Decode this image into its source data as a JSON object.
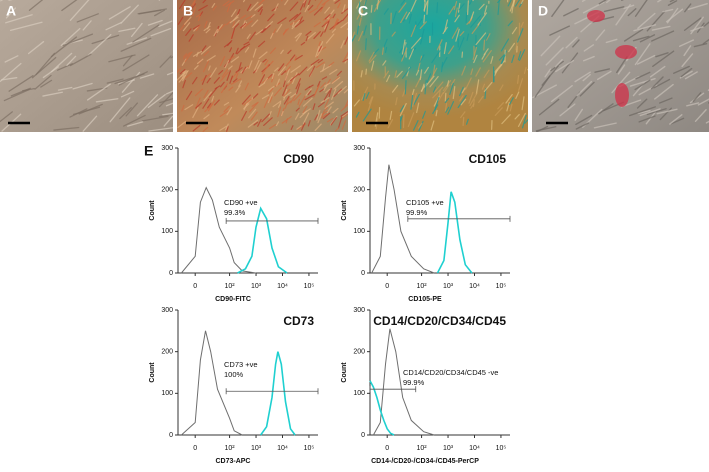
{
  "panels": [
    "A",
    "B",
    "C",
    "D"
  ],
  "figure_label": "E",
  "chart_data": [
    {
      "type": "line",
      "title": "CD90",
      "xlabel": "CD90-FITC",
      "ylabel": "Count",
      "xlim": [
        -50,
        220000
      ],
      "ylim": [
        0,
        300
      ],
      "yticks": [
        0,
        100,
        200,
        300
      ],
      "xticks": [
        0,
        {
          "value": 100,
          "label": "10²"
        },
        {
          "value": 1000,
          "label": "10³"
        },
        {
          "value": 10000,
          "label": "10⁴"
        },
        {
          "value": 100000,
          "label": "10⁵"
        }
      ],
      "gate": {
        "x": [
          90,
          220000
        ],
        "y": 125,
        "labels": [
          "CD90 +ve",
          "99.3%"
        ]
      },
      "series": [
        {
          "color": "#6e6e6e",
          "x": [
            -40,
            0,
            15,
            32,
            50,
            70,
            100,
            150,
            300,
            1000
          ],
          "values": [
            0,
            40,
            170,
            205,
            175,
            110,
            60,
            25,
            5,
            0
          ]
        },
        {
          "color": "#1fd0d0",
          "x": [
            200,
            400,
            700,
            1000,
            1500,
            2500,
            4000,
            7000,
            15000
          ],
          "values": [
            0,
            10,
            40,
            110,
            155,
            130,
            60,
            15,
            0
          ]
        }
      ]
    },
    {
      "type": "line",
      "title": "CD105",
      "xlabel": "CD105-PE",
      "ylabel": "Count",
      "xlim": [
        -50,
        220000
      ],
      "ylim": [
        0,
        300
      ],
      "yticks": [
        0,
        100,
        200,
        300
      ],
      "xticks": [
        0,
        {
          "value": 100,
          "label": "10²"
        },
        {
          "value": 1000,
          "label": "10³"
        },
        {
          "value": 10000,
          "label": "10⁴"
        },
        {
          "value": 100000,
          "label": "10⁵"
        }
      ],
      "gate": {
        "x": [
          60,
          220000
        ],
        "y": 130,
        "labels": [
          "CD105 +ve",
          "99.9%"
        ]
      },
      "series": [
        {
          "color": "#6e6e6e",
          "x": [
            -45,
            -20,
            -5,
            5,
            20,
            40,
            70,
            120,
            300
          ],
          "values": [
            0,
            40,
            180,
            260,
            200,
            100,
            40,
            10,
            0
          ]
        },
        {
          "color": "#1fd0d0",
          "x": [
            400,
            700,
            1000,
            1300,
            1800,
            2800,
            4500,
            8000
          ],
          "values": [
            0,
            30,
            120,
            195,
            170,
            80,
            20,
            0
          ]
        }
      ]
    },
    {
      "type": "line",
      "title": "CD73",
      "xlabel": "CD73-APC",
      "ylabel": "Count",
      "xlim": [
        -50,
        220000
      ],
      "ylim": [
        0,
        300
      ],
      "yticks": [
        0,
        100,
        200,
        300
      ],
      "xticks": [
        0,
        {
          "value": 100,
          "label": "10²"
        },
        {
          "value": 1000,
          "label": "10³"
        },
        {
          "value": 10000,
          "label": "10⁴"
        },
        {
          "value": 100000,
          "label": "10⁵"
        }
      ],
      "gate": {
        "x": [
          90,
          220000
        ],
        "y": 105,
        "labels": [
          "CD73 +ve",
          "100%"
        ]
      },
      "series": [
        {
          "color": "#6e6e6e",
          "x": [
            -40,
            0,
            15,
            30,
            45,
            65,
            100,
            150,
            300
          ],
          "values": [
            0,
            30,
            180,
            250,
            200,
            110,
            40,
            10,
            0
          ]
        },
        {
          "color": "#1fd0d0",
          "x": [
            1500,
            2500,
            4000,
            5500,
            6700,
            9000,
            13000,
            20000,
            30000
          ],
          "values": [
            0,
            20,
            90,
            170,
            200,
            170,
            80,
            15,
            0
          ]
        }
      ]
    },
    {
      "type": "line",
      "title": "CD14/CD20/CD34/CD45",
      "xlabel": "CD14-/CD20-/CD34-/CD45-PerCP",
      "ylabel": "Count",
      "xlim": [
        -50,
        220000
      ],
      "ylim": [
        0,
        300
      ],
      "yticks": [
        0,
        100,
        200,
        300
      ],
      "xticks": [
        0,
        {
          "value": 100,
          "label": "10²"
        },
        {
          "value": 1000,
          "label": "10³"
        },
        {
          "value": 10000,
          "label": "10⁴"
        },
        {
          "value": 100000,
          "label": "10⁵"
        }
      ],
      "gate": {
        "x": [
          -50,
          83
        ],
        "y": 110,
        "labels": [
          "CD14/CD20/CD34/CD45 -ve",
          "99.9%"
        ]
      },
      "series": [
        {
          "color": "#6e6e6e",
          "x": [
            -40,
            -20,
            -5,
            8,
            25,
            45,
            70,
            120,
            300
          ],
          "values": [
            0,
            30,
            170,
            255,
            200,
            90,
            35,
            8,
            0
          ]
        },
        {
          "color": "#1fd0d0",
          "x": [
            -50,
            -40,
            -30,
            -20,
            -10,
            0,
            10,
            20
          ],
          "values": [
            130,
            115,
            90,
            60,
            35,
            15,
            4,
            0
          ]
        }
      ]
    }
  ]
}
